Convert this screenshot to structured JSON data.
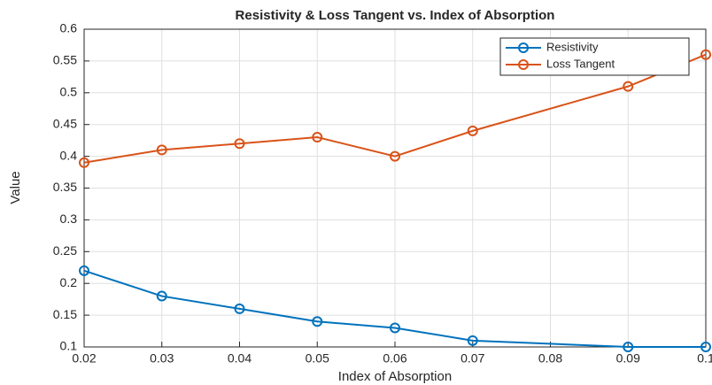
{
  "chart_data": {
    "type": "line",
    "title": "Resistivity & Loss Tangent vs. Index of Absorption",
    "x_label": "Index of Absorption",
    "y_label": "Value",
    "x": [
      0.02,
      0.03,
      0.04,
      0.05,
      0.06,
      0.07,
      0.09,
      0.1
    ],
    "series": [
      {
        "name": "Resistivity",
        "color": "#0072bd",
        "values": [
          0.22,
          0.18,
          0.16,
          0.14,
          0.13,
          0.11,
          0.1,
          0.1
        ]
      },
      {
        "name": "Loss Tangent",
        "color": "#d95319",
        "values": [
          0.39,
          0.41,
          0.42,
          0.43,
          0.4,
          0.44,
          0.51,
          0.56
        ]
      }
    ],
    "xlim": [
      0.02,
      0.1
    ],
    "xticks": [
      0.02,
      0.03,
      0.04,
      0.05,
      0.06,
      0.07,
      0.08,
      0.09,
      0.1
    ],
    "ylim": [
      0.1,
      0.6
    ],
    "yticks": [
      0.1,
      0.15,
      0.2,
      0.25,
      0.3,
      0.35,
      0.4,
      0.45,
      0.5,
      0.55,
      0.6
    ],
    "grid": true,
    "legend": "top-right"
  }
}
